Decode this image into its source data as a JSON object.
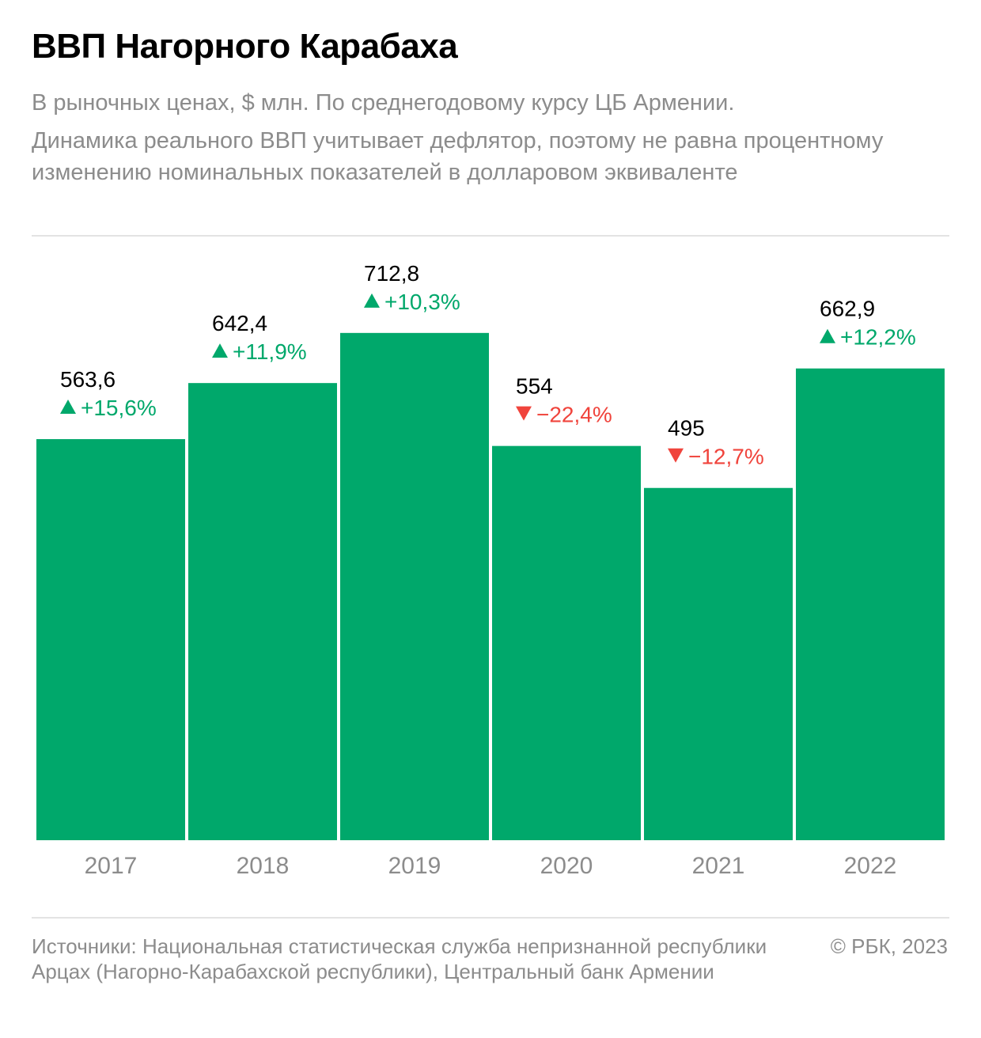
{
  "title": "ВВП Нагорного Карабаха",
  "subtitle": "В рыночных ценах, $ млн. По среднегодовому курсу ЦБ Армении.",
  "note": "Динамика реального ВВП учитывает дефлятор, поэтому не равна процентному изменению номинальных показателей в долларовом эквиваленте",
  "colors": {
    "bar": "#00a86b",
    "up": "#00a86b",
    "down": "#f0443c",
    "axis_text": "#8c8c8c"
  },
  "chart_data": {
    "type": "bar",
    "categories": [
      "2017",
      "2018",
      "2019",
      "2020",
      "2021",
      "2022"
    ],
    "values": [
      563.6,
      642.4,
      712.8,
      554,
      495,
      662.9
    ],
    "value_labels": [
      "563,6",
      "642,4",
      "712,8",
      "554",
      "495",
      "662,9"
    ],
    "changes": [
      "+15,6%",
      "+11,9%",
      "+10,3%",
      "−22,4%",
      "−12,7%",
      "+12,2%"
    ],
    "change_direction": [
      "up",
      "up",
      "up",
      "down",
      "down",
      "up"
    ],
    "ylim": [
      0,
      800
    ],
    "grid": false,
    "title": "ВВП Нагорного Карабаха",
    "xlabel": "",
    "ylabel": ""
  },
  "footer": {
    "source": "Источники: Национальная статистическая служба непризнанной республики Арцах (Нагорно-Карабахской республики), Центральный банк Армении",
    "copyright": "© РБК, 2023"
  }
}
